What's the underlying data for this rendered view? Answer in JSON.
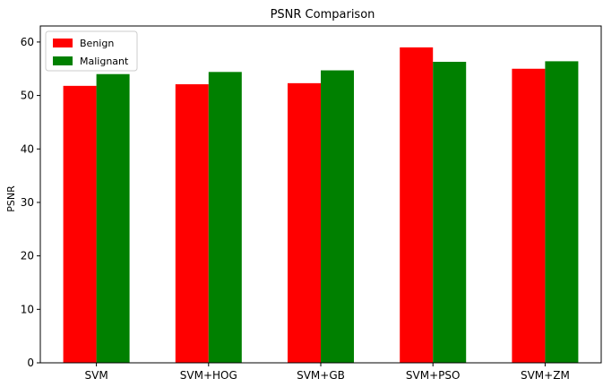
{
  "chart_data": {
    "type": "bar",
    "title": "PSNR Comparison",
    "xlabel": "",
    "ylabel": "PSNR",
    "categories": [
      "SVM",
      "SVM+HOG",
      "SVM+GB",
      "SVM+PSO",
      "SVM+ZM"
    ],
    "series": [
      {
        "name": "Benign",
        "color": "#ff0000",
        "values": [
          51.8,
          52.1,
          52.3,
          59.0,
          55.0
        ]
      },
      {
        "name": "Malignant",
        "color": "#008000",
        "values": [
          54.0,
          54.4,
          54.7,
          56.3,
          56.4
        ]
      }
    ],
    "ylim": [
      0,
      63
    ],
    "yticks": [
      0,
      10,
      20,
      30,
      40,
      50,
      60
    ],
    "grid": false,
    "legend_position": "top-left"
  }
}
